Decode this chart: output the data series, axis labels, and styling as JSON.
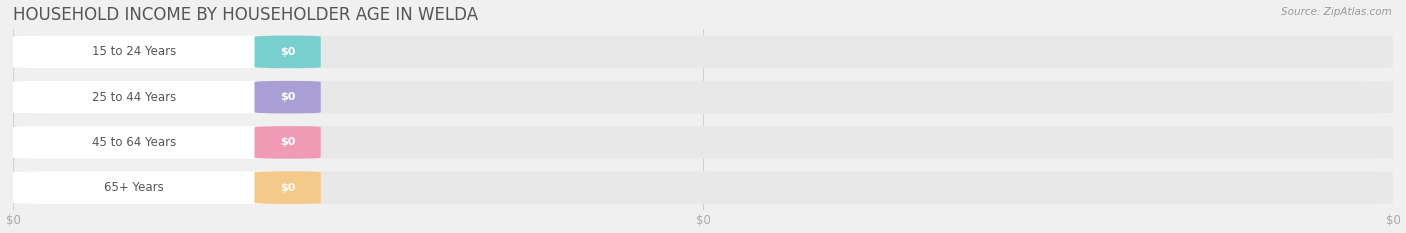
{
  "title": "HOUSEHOLD INCOME BY HOUSEHOLDER AGE IN WELDA",
  "source": "Source: ZipAtlas.com",
  "categories": [
    "15 to 24 Years",
    "25 to 44 Years",
    "45 to 64 Years",
    "65+ Years"
  ],
  "values": [
    0,
    0,
    0,
    0
  ],
  "bar_colors": [
    "#79cece",
    "#a99fd4",
    "#f09ab5",
    "#f5c98a"
  ],
  "bar_bg_color": "#e8e8e8",
  "white_pill_color": "#ffffff",
  "tick_label_color": "#aaaaaa",
  "title_color": "#555555",
  "source_color": "#999999",
  "background_color": "#f0f0f0",
  "grid_color": "#d0d0d0",
  "title_fontsize": 12,
  "bar_label_fontsize": 8.5,
  "value_fontsize": 8,
  "tick_fontsize": 8.5
}
